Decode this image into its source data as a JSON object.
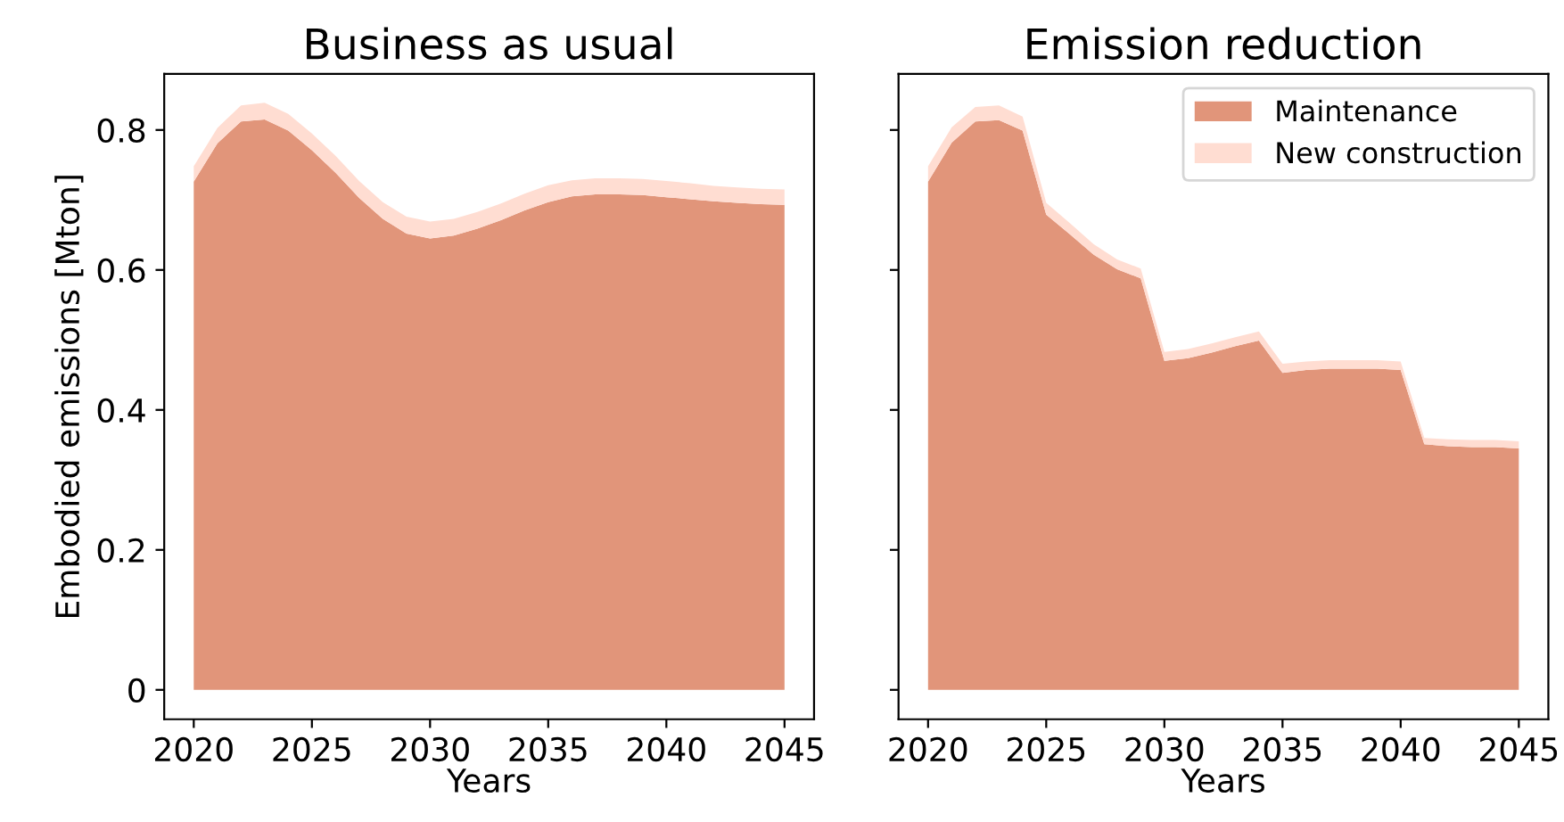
{
  "chart_data": [
    {
      "type": "area",
      "stacked": true,
      "title": "Business as usual",
      "xlabel": "Years",
      "ylabel": "Embodied emissions [Mton]",
      "x": [
        2020,
        2021,
        2022,
        2023,
        2024,
        2025,
        2026,
        2027,
        2028,
        2029,
        2030,
        2031,
        2032,
        2033,
        2034,
        2035,
        2036,
        2037,
        2038,
        2039,
        2040,
        2041,
        2042,
        2043,
        2044,
        2045
      ],
      "series": [
        {
          "color": "#e1957a",
          "values": [
            0.726,
            0.781,
            0.812,
            0.815,
            0.799,
            0.771,
            0.739,
            0.703,
            0.673,
            0.652,
            0.645,
            0.649,
            0.659,
            0.671,
            0.685,
            0.697,
            0.705,
            0.708,
            0.708,
            0.707,
            0.704,
            0.701,
            0.698,
            0.696,
            0.694,
            0.693
          ]
        },
        {
          "color": "#ffddd2",
          "values": [
            0.022,
            0.022,
            0.023,
            0.024,
            0.024,
            0.024,
            0.024,
            0.024,
            0.024,
            0.024,
            0.024,
            0.024,
            0.024,
            0.024,
            0.024,
            0.024,
            0.023,
            0.023,
            0.023,
            0.023,
            0.023,
            0.023,
            0.022,
            0.022,
            0.022,
            0.022
          ]
        }
      ],
      "xlim": [
        2018.75,
        2046.25
      ],
      "xticks": [
        2020,
        2025,
        2030,
        2035,
        2040,
        2045
      ],
      "ylim": [
        -0.042,
        0.88
      ],
      "yticks": [
        0,
        0.2,
        0.4,
        0.6,
        0.8
      ],
      "grid": false
    },
    {
      "type": "area",
      "stacked": true,
      "title": "Emission reduction",
      "xlabel": "Years",
      "x": [
        2020,
        2021,
        2022,
        2023,
        2024,
        2025,
        2026,
        2027,
        2028,
        2029,
        2030,
        2031,
        2032,
        2033,
        2034,
        2035,
        2036,
        2037,
        2038,
        2039,
        2040,
        2041,
        2042,
        2043,
        2044,
        2045
      ],
      "series": [
        {
          "name": "Maintenance",
          "color": "#e1957a",
          "values": [
            0.726,
            0.782,
            0.812,
            0.814,
            0.799,
            0.679,
            0.651,
            0.622,
            0.601,
            0.588,
            0.47,
            0.474,
            0.482,
            0.491,
            0.499,
            0.453,
            0.457,
            0.459,
            0.459,
            0.459,
            0.457,
            0.351,
            0.348,
            0.347,
            0.347,
            0.345
          ]
        },
        {
          "name": "New construction",
          "color": "#ffddd2",
          "values": [
            0.022,
            0.022,
            0.021,
            0.021,
            0.02,
            0.017,
            0.016,
            0.015,
            0.014,
            0.014,
            0.013,
            0.013,
            0.013,
            0.013,
            0.013,
            0.013,
            0.012,
            0.012,
            0.012,
            0.012,
            0.012,
            0.009,
            0.01,
            0.01,
            0.01,
            0.01
          ]
        }
      ],
      "xlim": [
        2018.75,
        2046.25
      ],
      "xticks": [
        2020,
        2025,
        2030,
        2035,
        2040,
        2045
      ],
      "ylim": [
        -0.042,
        0.88
      ],
      "yticks": [
        0,
        0.2,
        0.4,
        0.6,
        0.8
      ],
      "tick_labels": "x",
      "grid": false,
      "legend": "top right"
    }
  ]
}
